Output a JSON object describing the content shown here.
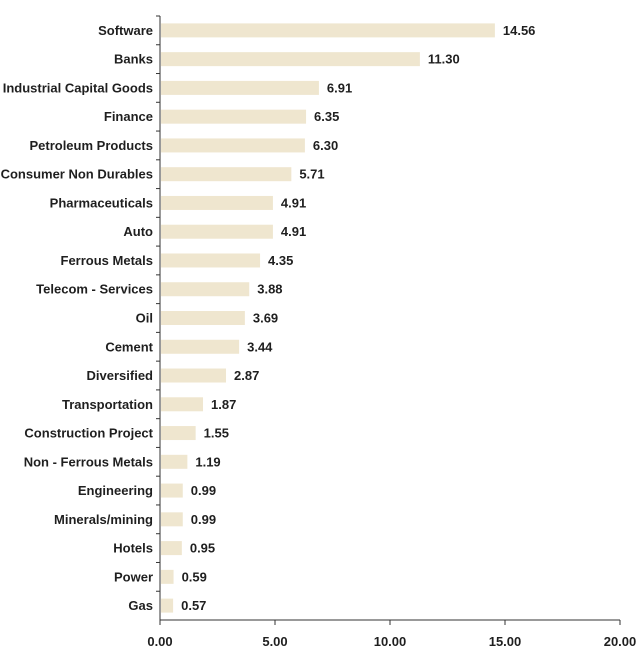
{
  "chart_data": {
    "type": "bar",
    "orientation": "horizontal",
    "categories": [
      "Software",
      "Banks",
      "Industrial Capital Goods",
      "Finance",
      "Petroleum Products",
      "Consumer Non Durables",
      "Pharmaceuticals",
      "Auto",
      "Ferrous Metals",
      "Telecom - Services",
      "Oil",
      "Cement",
      "Diversified",
      "Transportation",
      "Construction Project",
      "Non - Ferrous Metals",
      "Engineering",
      "Minerals/mining",
      "Hotels",
      "Power",
      "Gas"
    ],
    "values": [
      14.56,
      11.3,
      6.91,
      6.35,
      6.3,
      5.71,
      4.91,
      4.91,
      4.35,
      3.88,
      3.69,
      3.44,
      2.87,
      1.87,
      1.55,
      1.19,
      0.99,
      0.99,
      0.95,
      0.59,
      0.57
    ],
    "value_labels": [
      "14.56",
      "11.30",
      "6.91",
      "6.35",
      "6.30",
      "5.71",
      "4.91",
      "4.91",
      "4.35",
      "3.88",
      "3.69",
      "3.44",
      "2.87",
      "1.87",
      "1.55",
      "1.19",
      "0.99",
      "0.99",
      "0.95",
      "0.59",
      "0.57"
    ],
    "xticks": [
      "0.00",
      "5.00",
      "10.00",
      "15.00",
      "20.00"
    ],
    "xlim": [
      0,
      20
    ],
    "title": "",
    "xlabel": "",
    "ylabel": "",
    "grid": false,
    "legend": "none",
    "bar_color": "#efe6cf",
    "text_color": "#1f1f1f"
  }
}
